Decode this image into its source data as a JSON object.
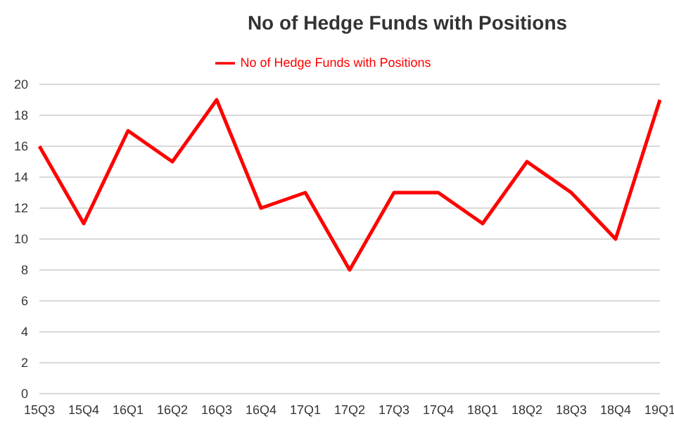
{
  "chart_data": {
    "type": "line",
    "title": "No of Hedge Funds with Positions",
    "categories": [
      "15Q3",
      "15Q4",
      "16Q1",
      "16Q2",
      "16Q3",
      "16Q4",
      "17Q1",
      "17Q2",
      "17Q3",
      "17Q4",
      "18Q1",
      "18Q2",
      "18Q3",
      "18Q4",
      "19Q1"
    ],
    "series": [
      {
        "name": "No of Hedge Funds with Positions",
        "color": "#ff0000",
        "values": [
          16,
          11,
          17,
          15,
          19,
          12,
          13,
          8,
          13,
          13,
          11,
          15,
          13,
          10,
          19
        ]
      }
    ],
    "ylim": [
      0,
      20
    ],
    "yticks": [
      0,
      2,
      4,
      6,
      8,
      10,
      12,
      14,
      16,
      18,
      20
    ],
    "grid": "y",
    "legend": "top",
    "marker": "none",
    "line_style": "solid"
  }
}
